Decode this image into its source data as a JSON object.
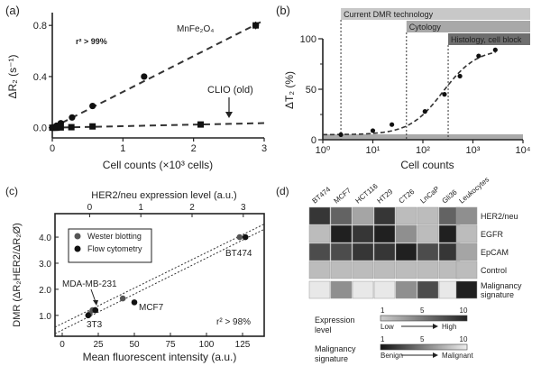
{
  "chart_data": [
    {
      "panel": "(a)",
      "type": "scatter",
      "xlabel": "Cell counts (×10³ cells)",
      "ylabel": "ΔR₂ (s⁻¹)",
      "xlim": [
        0,
        3
      ],
      "ylim": [
        -0.08,
        0.9
      ],
      "xticks": [
        "0",
        "1",
        "2",
        "3"
      ],
      "yticks": [
        "0.0",
        "0.4",
        "0.8"
      ],
      "annotation": "r² > 99%",
      "series": [
        {
          "name": "MnFe₂O₄",
          "marker": "circle",
          "x": [
            0,
            0.03,
            0.06,
            0.12,
            0.28,
            0.57,
            1.3,
            2.88
          ],
          "y": [
            0,
            0.005,
            0.015,
            0.035,
            0.08,
            0.17,
            0.4,
            0.8
          ],
          "fit": [
            0.0,
            0.28
          ]
        },
        {
          "name": "CLIO (old)",
          "marker": "square",
          "x": [
            0,
            0.03,
            0.06,
            0.12,
            0.27,
            0.57,
            2.1
          ],
          "y": [
            0,
            0,
            0,
            0.002,
            0.004,
            0.01,
            0.025
          ],
          "fit": [
            0.0,
            0.012
          ]
        }
      ],
      "labels": {
        "mnfe": "MnFe₂O₄",
        "clio": "CLIO (old)"
      }
    },
    {
      "panel": "(b)",
      "type": "scatter",
      "xlabel": "Cell counts",
      "ylabel": "ΔT₂ (%)",
      "xscale": "log",
      "xlim": [
        1,
        10000
      ],
      "ylim": [
        0,
        100
      ],
      "xticks": [
        "10⁰",
        "10¹",
        "10²",
        "10³",
        "10⁴"
      ],
      "yticks": [
        "0",
        "50",
        "100"
      ],
      "series": [
        {
          "name": "data",
          "x": [
            2.3,
            10,
            24,
            110,
            270,
            550,
            1300,
            2800
          ],
          "y": [
            5,
            9,
            15,
            28,
            45,
            63,
            83,
            89
          ]
        }
      ],
      "ranges": [
        {
          "label": "Current DMR technology",
          "from": 2.3,
          "color": "#c8c8c8"
        },
        {
          "label": "Cytology",
          "from": 47,
          "color": "#a8a8a8"
        },
        {
          "label": "Histology, cell block",
          "from": 320,
          "color": "#6e6e6e"
        }
      ]
    },
    {
      "panel": "(c)",
      "type": "scatter",
      "xlabel": "Mean fluorescent intensity (a.u.)",
      "x2label": "HER2/neu expression level (a.u.)",
      "ylabel": "DMR (ΔR₂HER2/ΔR₂Ø)",
      "xlim": [
        -5,
        140
      ],
      "ylim": [
        0.2,
        4.9
      ],
      "xticks": [
        "0",
        "25",
        "50",
        "75",
        "100",
        "125"
      ],
      "x2ticks": [
        "0",
        "1",
        "2",
        "3"
      ],
      "yticks": [
        "1.0",
        "2.0",
        "3.0",
        "4.0"
      ],
      "annotation": "r² > 98%",
      "legend": [
        "Wester blotting",
        "Flow cytometry"
      ],
      "series": [
        {
          "name": "Wester blotting",
          "x": [
            19,
            21,
            42,
            123
          ],
          "y": [
            1.05,
            1.2,
            1.65,
            4.0
          ]
        },
        {
          "name": "Flow cytometry",
          "x": [
            18,
            23,
            50,
            127
          ],
          "y": [
            1.0,
            1.2,
            1.5,
            4.0
          ]
        }
      ],
      "point_labels": [
        "MDA-MB-231",
        "3T3",
        "MCF7",
        "BT474"
      ]
    },
    {
      "panel": "(d)",
      "type": "heatmap",
      "columns": [
        "BT474",
        "MCF7",
        "HCT116",
        "HT29",
        "CT26",
        "LnCaP",
        "Gli36",
        "Leukocytes"
      ],
      "rows": [
        "HER2/neu",
        "EGFR",
        "EpCAM",
        "Control",
        "Malignancy signature"
      ],
      "values": [
        [
          9,
          7,
          4,
          9,
          3,
          3,
          7,
          5
        ],
        [
          3,
          10,
          9,
          10,
          5,
          3,
          10,
          3
        ],
        [
          8,
          8,
          9,
          9,
          10,
          8,
          9,
          4
        ],
        [
          3,
          3,
          3,
          3,
          3,
          3,
          3,
          3
        ],
        [
          10,
          6,
          10,
          10,
          6,
          3,
          10,
          1
        ]
      ],
      "legend_expression": {
        "title": "Expression level",
        "ticks": [
          "1",
          "5",
          "10"
        ],
        "low": "Low",
        "high": "High"
      },
      "legend_malignancy": {
        "title": "Malignancy signature",
        "ticks": [
          "1",
          "5",
          "10"
        ],
        "low": "Benign",
        "high": "Malignant"
      }
    }
  ]
}
